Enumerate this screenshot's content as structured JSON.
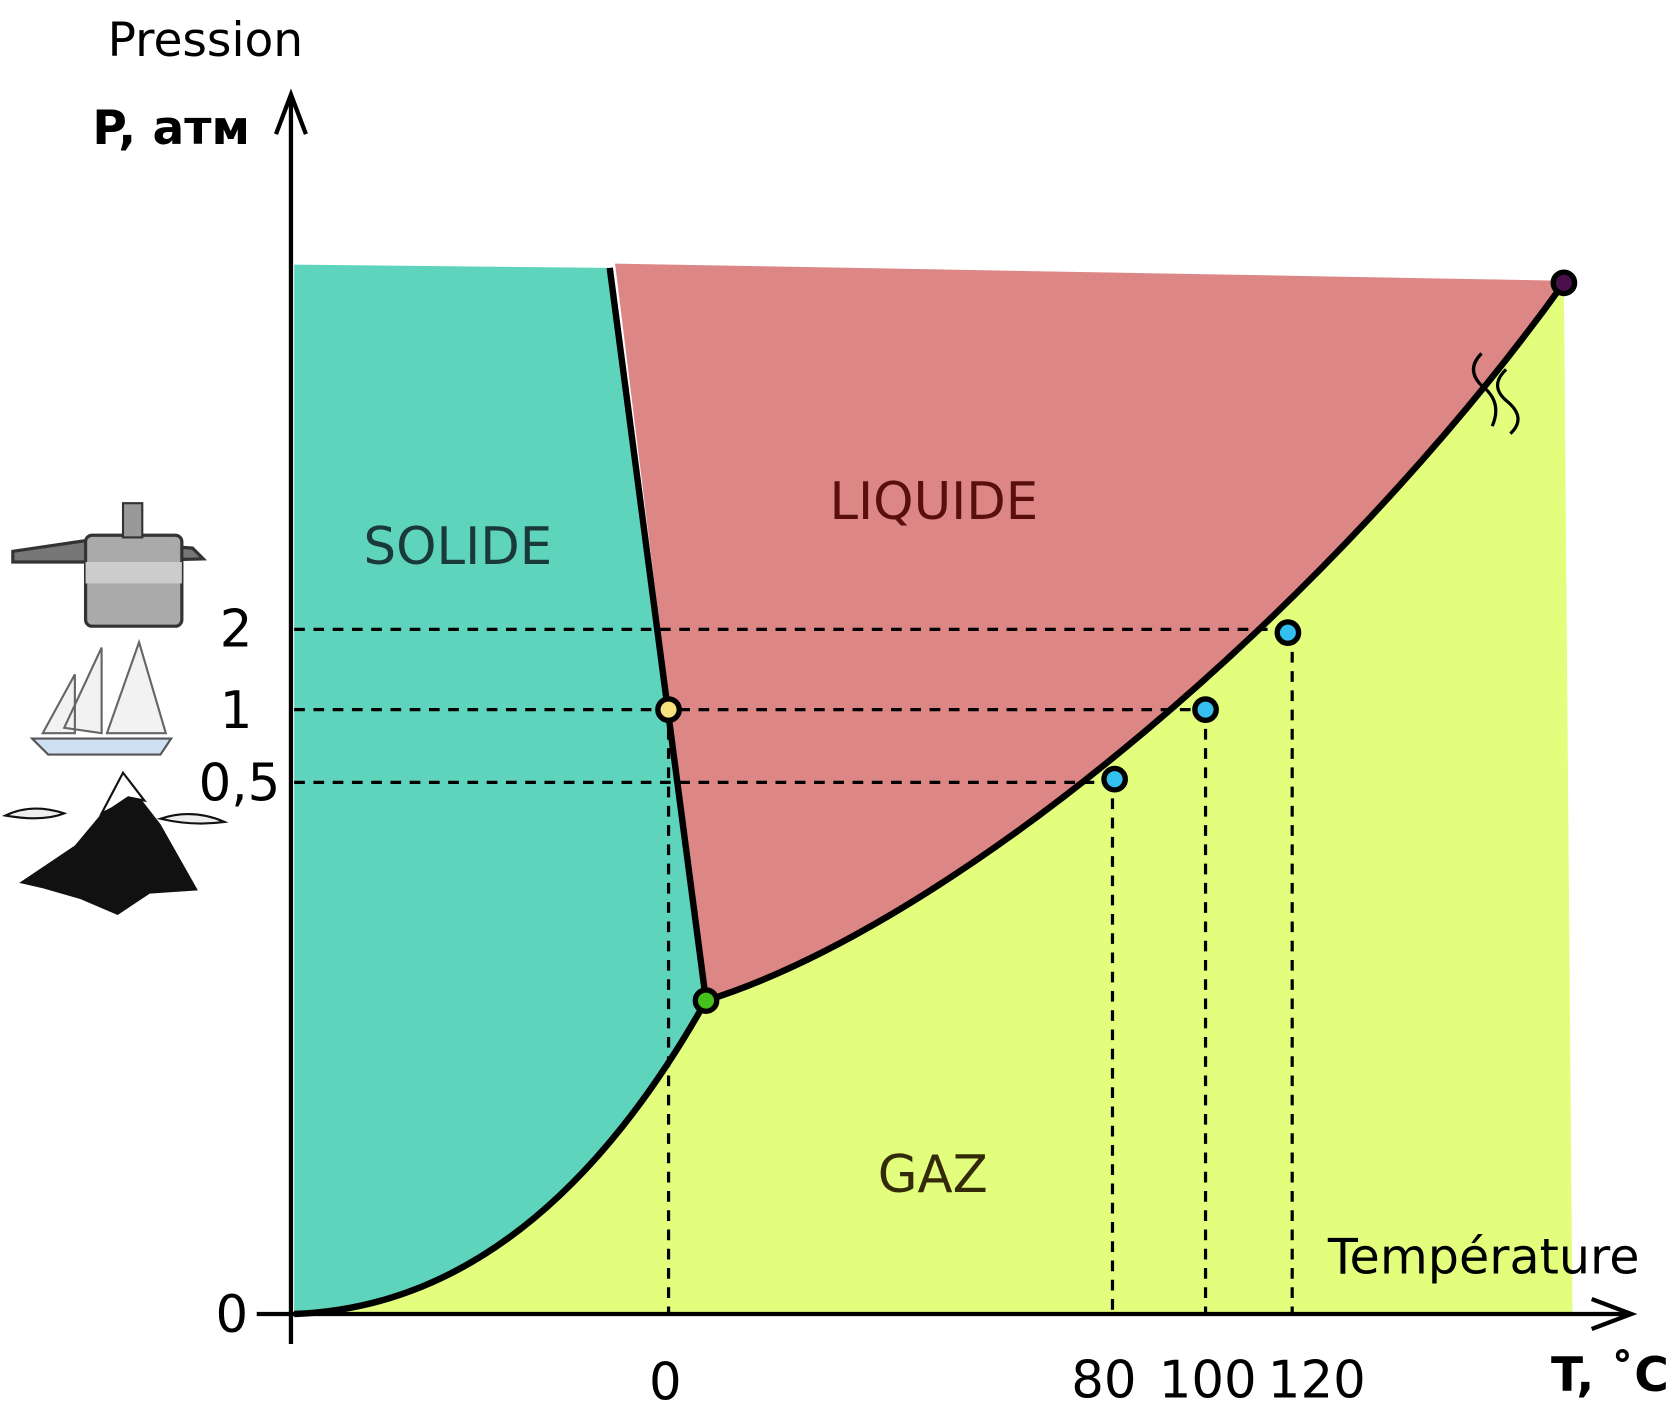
{
  "axes": {
    "y_title": "Pression",
    "y_label": "P, атм",
    "x_title": "Température",
    "x_label": "T, ˚C"
  },
  "regions": {
    "solid": "SOLIDE",
    "liquid": "LIQUIDE",
    "gas": "GAZ"
  },
  "y_ticks": [
    "2",
    "1",
    "0,5",
    "0"
  ],
  "x_ticks": [
    "0",
    "80",
    "100",
    "120"
  ]
}
